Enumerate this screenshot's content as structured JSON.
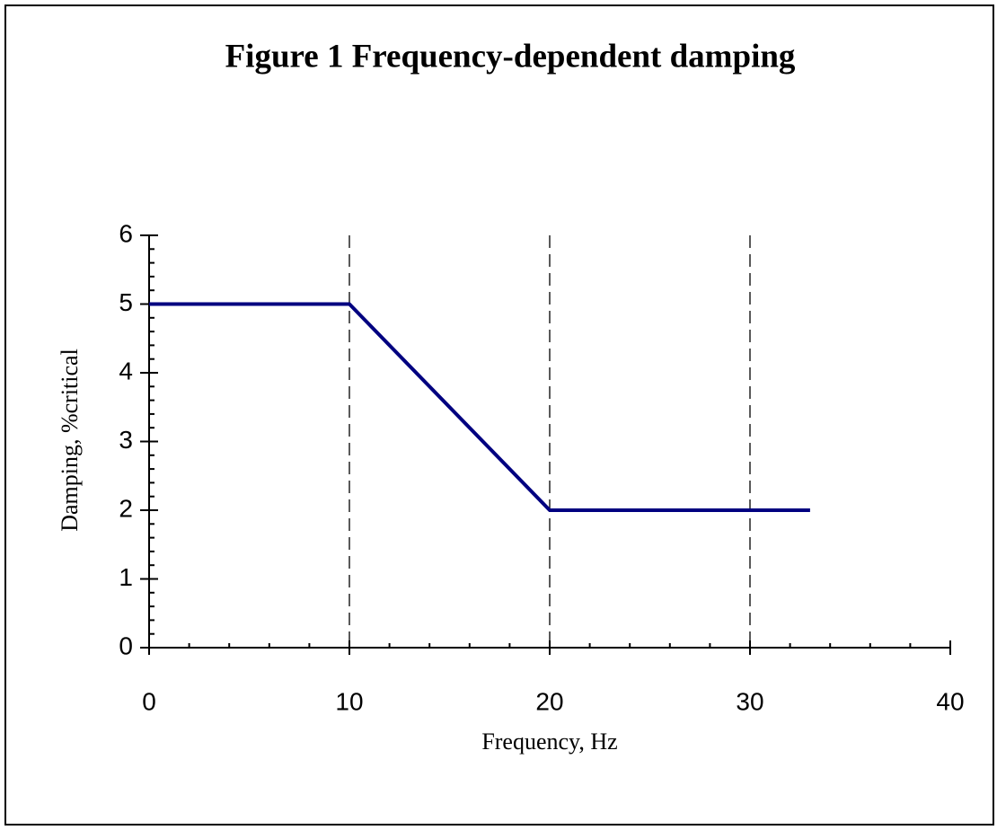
{
  "chart_data": {
    "type": "line",
    "title": "Figure 1 Frequency-dependent damping",
    "xlabel": "Frequency, Hz",
    "ylabel": "Damping, %critical",
    "x": [
      0,
      10,
      20,
      33
    ],
    "series": [
      {
        "name": "Damping",
        "color": "#000080",
        "values": [
          5,
          5,
          2,
          2
        ]
      }
    ],
    "xlim": [
      0,
      40
    ],
    "xticks": [
      0,
      10,
      20,
      30,
      40
    ],
    "xminorticks": [
      2,
      4,
      6,
      8,
      12,
      14,
      16,
      18,
      22,
      24,
      26,
      28,
      32,
      34,
      36,
      38
    ],
    "ylim": [
      0,
      6
    ],
    "yticks": [
      0,
      1,
      2,
      3,
      4,
      5,
      6
    ],
    "yminorticks": [
      0.2,
      0.4,
      0.6,
      0.8,
      1.2,
      1.4,
      1.6,
      1.8,
      2.2,
      2.4,
      2.6,
      2.8,
      3.2,
      3.4,
      3.6,
      3.8,
      4.2,
      4.4,
      4.6,
      4.8,
      5.2,
      5.4,
      5.6,
      5.8
    ],
    "xgrid": true
  }
}
